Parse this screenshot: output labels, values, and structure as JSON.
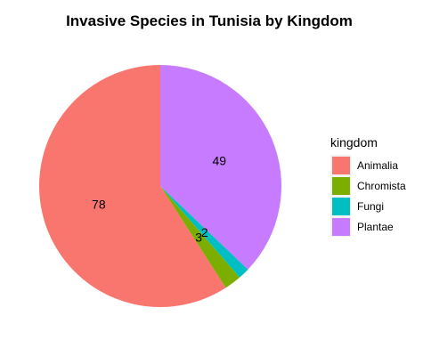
{
  "chart_data": {
    "type": "pie",
    "title": "Invasive Species in Tunisia by Kingdom",
    "legend_title": "kingdom",
    "legend_position": "right",
    "categories": [
      "Animalia",
      "Chromista",
      "Fungi",
      "Plantae"
    ],
    "values": [
      78,
      3,
      2,
      49
    ],
    "colors": [
      "#F8766D",
      "#7CAE00",
      "#00BFC4",
      "#C77CFF"
    ],
    "data_labels": [
      "78",
      "3",
      "2",
      "49"
    ]
  }
}
